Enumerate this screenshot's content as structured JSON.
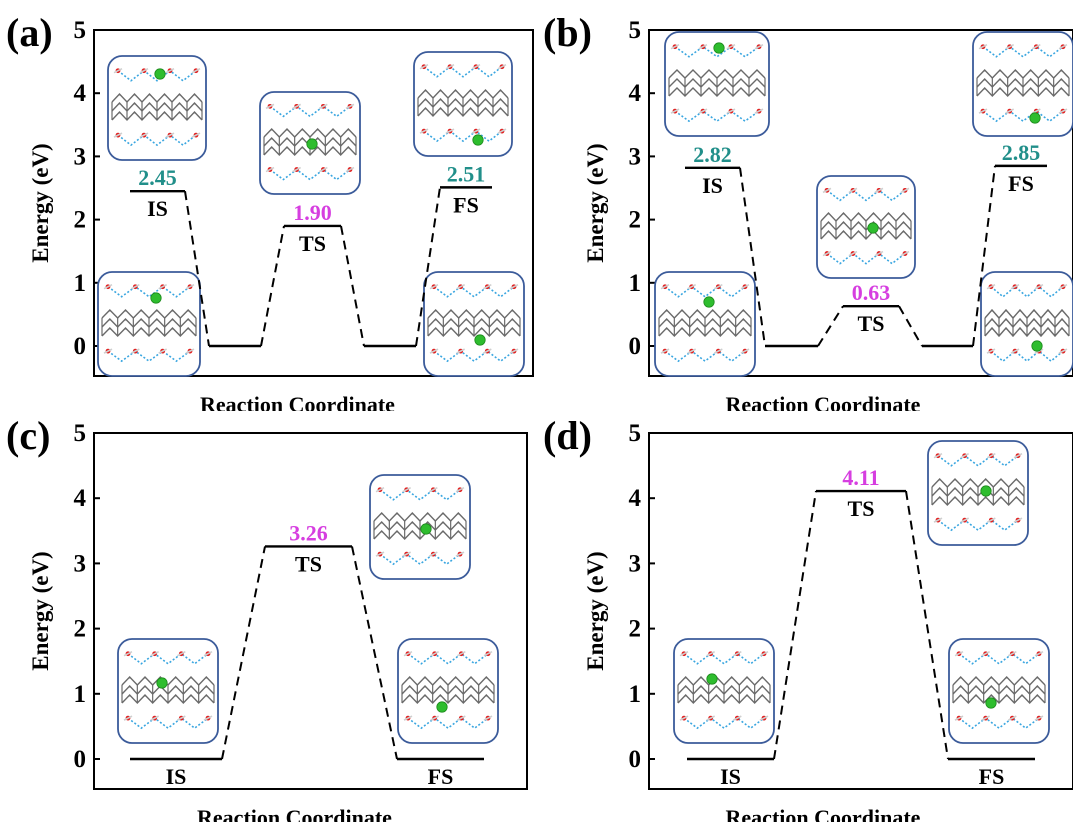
{
  "chart_data": [
    {
      "type": "line",
      "panel_label": "(a)",
      "xlabel": "Reaction Coordinate",
      "ylabel": "Energy (eV)",
      "ylim": [
        0,
        5
      ],
      "yticks": [
        "0",
        "1",
        "2",
        "3",
        "4",
        "5"
      ],
      "levels": [
        {
          "name": "IS",
          "value": 2.45,
          "label": "2.45",
          "color": "#218f8a"
        },
        {
          "name": "",
          "value": 0,
          "label": ""
        },
        {
          "name": "TS",
          "value": 1.9,
          "label": "1.90",
          "color": "#d63ee0"
        },
        {
          "name": "",
          "value": 0,
          "label": ""
        },
        {
          "name": "FS",
          "value": 2.51,
          "label": "2.51",
          "color": "#218f8a"
        }
      ]
    },
    {
      "type": "line",
      "panel_label": "(b)",
      "xlabel": "Reaction Coordinate",
      "ylabel": "Energy (eV)",
      "ylim": [
        0,
        5
      ],
      "yticks": [
        "0",
        "1",
        "2",
        "3",
        "4",
        "5"
      ],
      "levels": [
        {
          "name": "IS",
          "value": 2.82,
          "label": "2.82",
          "color": "#218f8a"
        },
        {
          "name": "",
          "value": 0,
          "label": ""
        },
        {
          "name": "TS",
          "value": 0.63,
          "label": "0.63",
          "color": "#d63ee0"
        },
        {
          "name": "",
          "value": 0,
          "label": ""
        },
        {
          "name": "FS",
          "value": 2.85,
          "label": "2.85",
          "color": "#218f8a"
        }
      ]
    },
    {
      "type": "line",
      "panel_label": "(c)",
      "xlabel": "Reaction Coordinate",
      "ylabel": "Energy (eV)",
      "ylim": [
        0,
        5
      ],
      "yticks": [
        "0",
        "1",
        "2",
        "3",
        "4",
        "5"
      ],
      "levels": [
        {
          "name": "IS",
          "value": 0,
          "label": ""
        },
        {
          "name": "TS",
          "value": 3.26,
          "label": "3.26",
          "color": "#d63ee0"
        },
        {
          "name": "FS",
          "value": 0,
          "label": ""
        }
      ]
    },
    {
      "type": "line",
      "panel_label": "(d)",
      "xlabel": "Reaction Coordinate",
      "ylabel": "Energy (eV)",
      "ylim": [
        0,
        5
      ],
      "yticks": [
        "0",
        "1",
        "2",
        "3",
        "4",
        "5"
      ],
      "levels": [
        {
          "name": "IS",
          "value": 0,
          "label": ""
        },
        {
          "name": "TS",
          "value": 4.11,
          "label": "4.11",
          "color": "#d63ee0"
        },
        {
          "name": "FS",
          "value": 0,
          "label": ""
        }
      ]
    }
  ],
  "colors": {
    "ion": "#2ebd2e",
    "graphene": "#6a6a6a",
    "oxygen": "#e02020",
    "hbond": "#3aa6e0",
    "inset_border": "#3b5b9a"
  }
}
